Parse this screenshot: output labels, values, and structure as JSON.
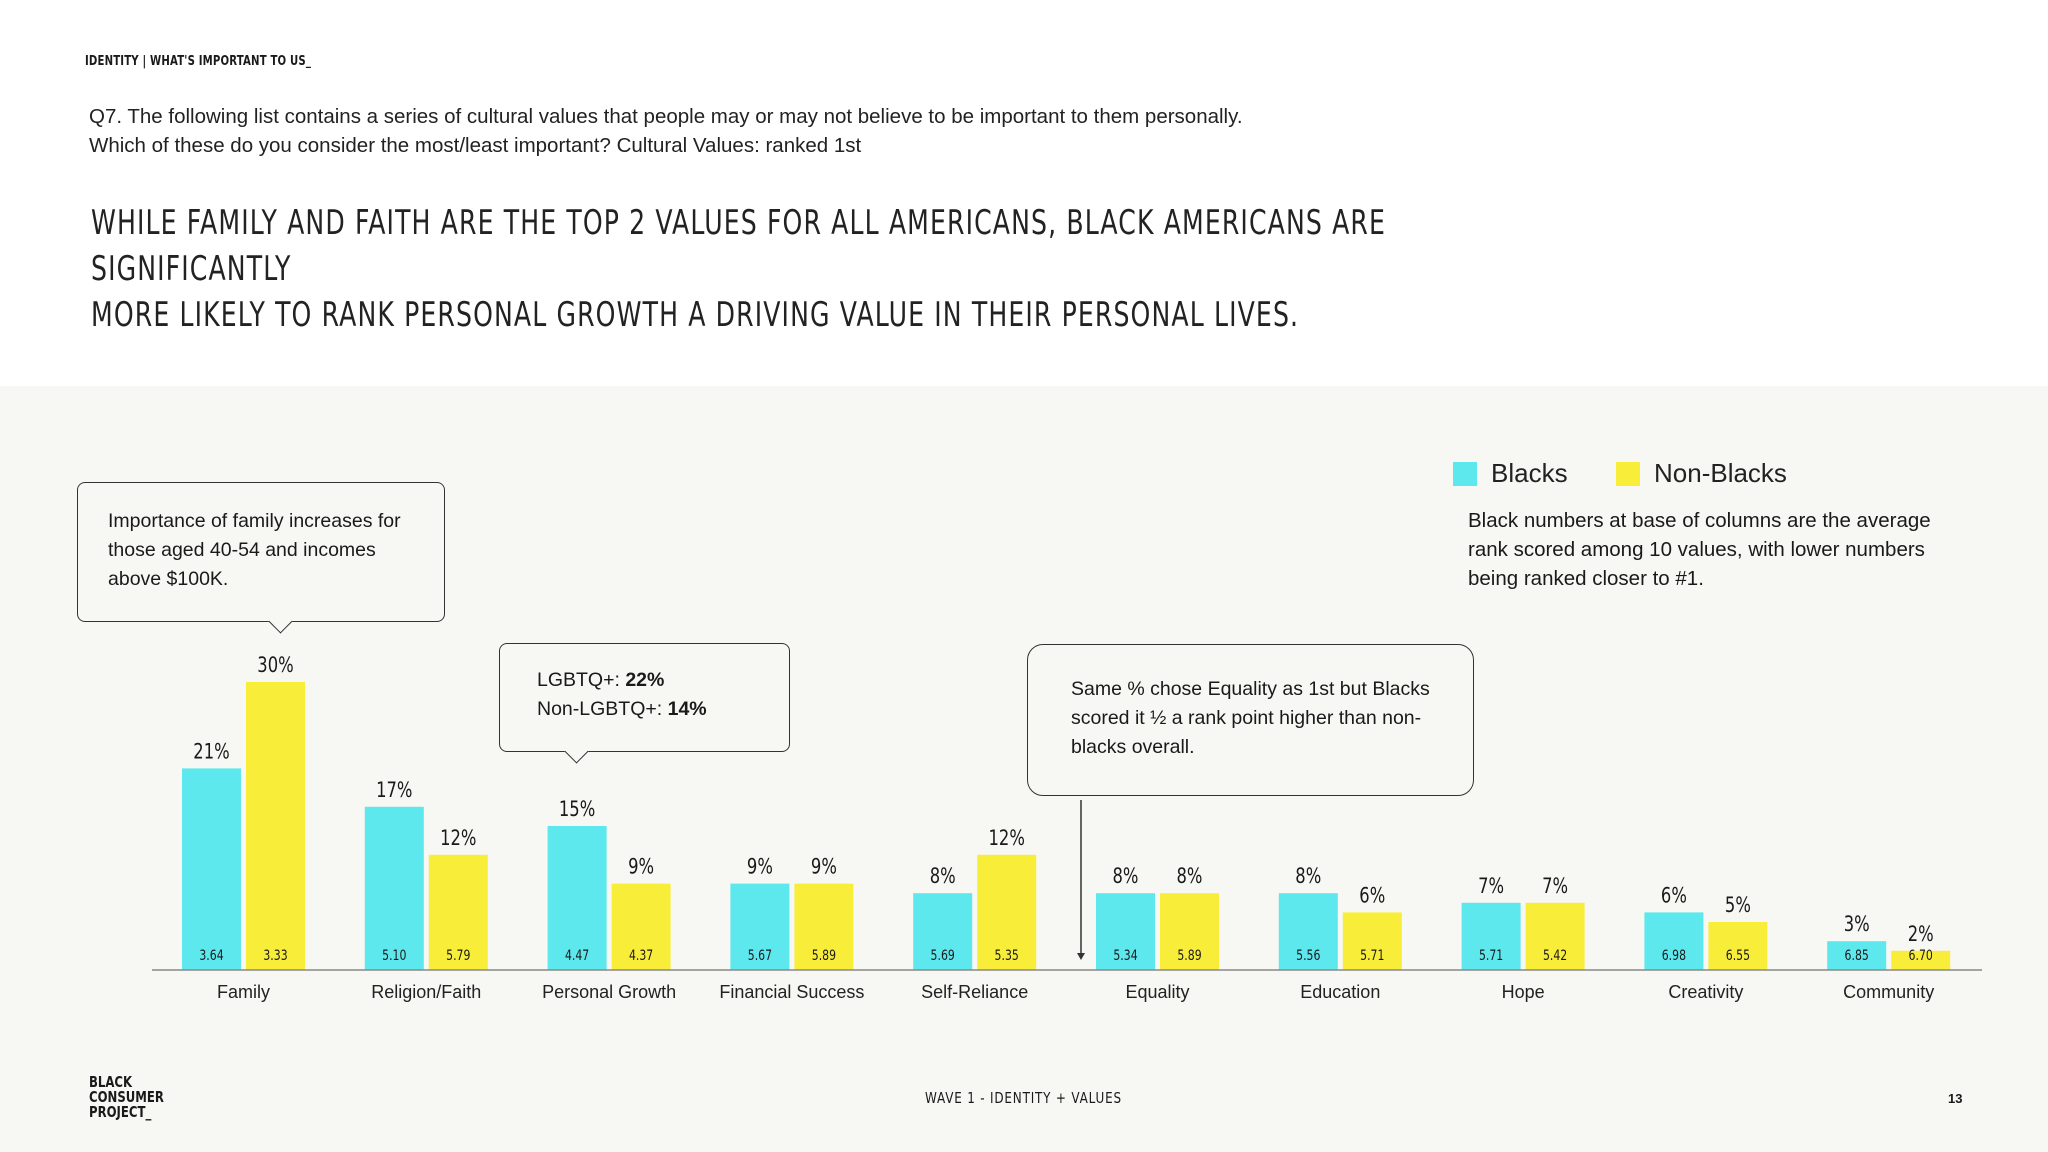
{
  "header": {
    "section_label": "IDENTITY | WHAT'S IMPORTANT TO US_",
    "question_line1": "Q7. The following list contains a series of cultural values that people may or may not believe to be important to them personally.",
    "question_line2": "Which of these do you consider the most/least important? Cultural Values: ranked 1st",
    "headline_line1": "WHILE FAMILY AND FAITH ARE THE TOP 2 VALUES FOR ALL AMERICANS, BLACK AMERICANS ARE SIGNIFICANTLY",
    "headline_line2": "MORE LIKELY TO RANK PERSONAL GROWTH A DRIVING VALUE IN THEIR PERSONAL LIVES."
  },
  "legend": {
    "items": [
      {
        "label": "Blacks",
        "color": "#5de8ee"
      },
      {
        "label": "Non-Blacks",
        "color": "#f8ee3a"
      }
    ],
    "note": "Black numbers at base of columns are the average rank scored among 10 values, with lower numbers being ranked closer to #1."
  },
  "callouts": {
    "family": "Importance of family increases for those aged 40-54 and incomes above $100K.",
    "lgbtq_label1": "LGBTQ+: ",
    "lgbtq_value1": "22%",
    "lgbtq_label2": "Non-LGBTQ+: ",
    "lgbtq_value2": "14%",
    "equality": "Same % chose Equality as 1st but Blacks scored it ½ a rank point higher than non-blacks overall."
  },
  "chart_data": {
    "type": "bar",
    "categories": [
      "Family",
      "Religion/Faith",
      "Personal Growth",
      "Financial Success",
      "Self-Reliance",
      "Equality",
      "Education",
      "Hope",
      "Creativity",
      "Community"
    ],
    "series": [
      {
        "name": "Blacks",
        "color": "#5de8ee",
        "values": [
          21,
          17,
          15,
          9,
          8,
          8,
          8,
          7,
          6,
          3
        ],
        "labels": [
          "21%",
          "17%",
          "15%",
          "9%",
          "8%",
          "8%",
          "8%",
          "7%",
          "6%",
          "3%"
        ],
        "avg_rank": [
          "3.64",
          "5.10",
          "4.47",
          "5.67",
          "5.69",
          "5.34",
          "5.56",
          "5.71",
          "6.98",
          "6.85"
        ]
      },
      {
        "name": "Non-Blacks",
        "color": "#f8ee3a",
        "values": [
          30,
          12,
          9,
          9,
          12,
          8,
          6,
          7,
          5,
          2
        ],
        "labels": [
          "30%",
          "12%",
          "9%",
          "9%",
          "12%",
          "8%",
          "6%",
          "7%",
          "5%",
          "2%"
        ],
        "avg_rank": [
          "3.33",
          "5.79",
          "4.37",
          "5.89",
          "5.35",
          "5.89",
          "5.71",
          "5.42",
          "6.55",
          "6.70"
        ]
      }
    ],
    "ylim": [
      0,
      30
    ],
    "grid": false,
    "legend_position": "top-right"
  },
  "footer": {
    "logo_line1": "BLACK",
    "logo_line2": "CONSUMER",
    "logo_line3": "PROJECT_",
    "center": "WAVE 1 - IDENTITY + VALUES",
    "page": "13"
  }
}
